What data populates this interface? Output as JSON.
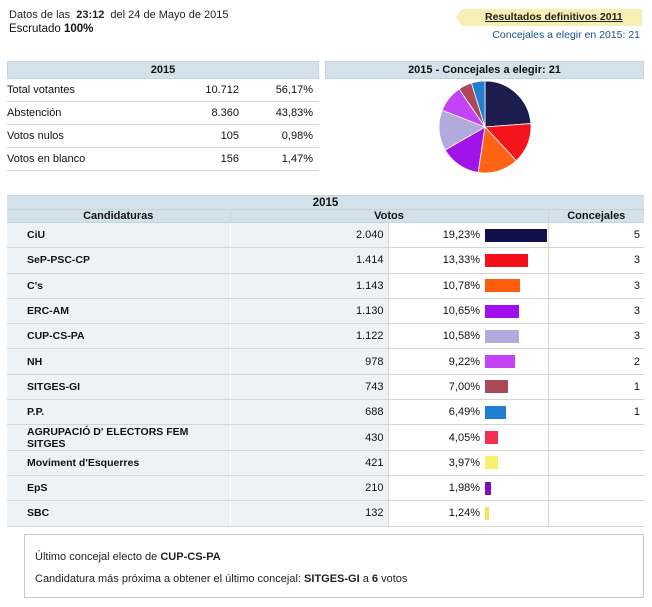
{
  "header": {
    "datos_prefix": "Datos de las",
    "time": "23:12",
    "date_text": "del 24 de Mayo de 2015",
    "escrutado_label": "Escrutado",
    "escrutado_value": "100%",
    "results_link": "Resultados definitivos 2011",
    "to_elect": "Concejales a elegir en 2015: 21"
  },
  "summary": {
    "title": "2015",
    "rows": [
      {
        "label": "Total votantes",
        "number": "10.712",
        "percent": "56,17%"
      },
      {
        "label": "Abstención",
        "number": "8.360",
        "percent": "43,83%"
      },
      {
        "label": "Votos nulos",
        "number": "105",
        "percent": "0,98%"
      },
      {
        "label": "Votos en blanco",
        "number": "156",
        "percent": "1,47%"
      }
    ]
  },
  "pie": {
    "title": "2015 - Concejales a elegir: 21",
    "slices": [
      {
        "party": "CiU",
        "seats": 5,
        "color": "#1c1c4f"
      },
      {
        "party": "SeP-PSC-CP",
        "seats": 3,
        "color": "#f4141d"
      },
      {
        "party": "C's",
        "seats": 3,
        "color": "#ff6415"
      },
      {
        "party": "ERC-AM",
        "seats": 3,
        "color": "#a014ea"
      },
      {
        "party": "CUP-CS-PA",
        "seats": 3,
        "color": "#b2a9dc"
      },
      {
        "party": "NH",
        "seats": 2,
        "color": "#c244f4"
      },
      {
        "party": "SITGES-GI",
        "seats": 1,
        "color": "#ab4a56"
      },
      {
        "party": "P.P.",
        "seats": 1,
        "color": "#1f7fd2"
      }
    ]
  },
  "table": {
    "title": "2015",
    "col_candidaturas": "Candidaturas",
    "col_votos": "Votos",
    "col_concejales": "Concejales",
    "rows": [
      {
        "name": "CiU",
        "votes": "2.040",
        "percent": "19,23%",
        "pct_value": 19.23,
        "color": "#111149",
        "seats": "5"
      },
      {
        "name": "SeP-PSC-CP",
        "votes": "1.414",
        "percent": "13,33%",
        "pct_value": 13.33,
        "color": "#f3101a",
        "seats": "3"
      },
      {
        "name": "C's",
        "votes": "1.143",
        "percent": "10,78%",
        "pct_value": 10.78,
        "color": "#ff5d0e",
        "seats": "3"
      },
      {
        "name": "ERC-AM",
        "votes": "1.130",
        "percent": "10,65%",
        "pct_value": 10.65,
        "color": "#a10ef0",
        "seats": "3"
      },
      {
        "name": "CUP-CS-PA",
        "votes": "1.122",
        "percent": "10,58%",
        "pct_value": 10.58,
        "color": "#b2a9dc",
        "seats": "3"
      },
      {
        "name": "NH",
        "votes": "978",
        "percent": "9,22%",
        "pct_value": 9.22,
        "color": "#c244f4",
        "seats": "2"
      },
      {
        "name": "SITGES-GI",
        "votes": "743",
        "percent": "7,00%",
        "pct_value": 7.0,
        "color": "#ab4a56",
        "seats": "1"
      },
      {
        "name": "P.P.",
        "votes": "688",
        "percent": "6,49%",
        "pct_value": 6.49,
        "color": "#1f7fd2",
        "seats": "1"
      },
      {
        "name": "AGRUPACIÓ D' ELECTORS FEM SITGES",
        "votes": "430",
        "percent": "4,05%",
        "pct_value": 4.05,
        "color": "#f43050",
        "seats": ""
      },
      {
        "name": "Moviment d'Esquerres",
        "votes": "421",
        "percent": "3,97%",
        "pct_value": 3.97,
        "color": "#f7f06a",
        "seats": ""
      },
      {
        "name": "EpS",
        "votes": "210",
        "percent": "1,98%",
        "pct_value": 1.98,
        "color": "#7e0fb6",
        "seats": ""
      },
      {
        "name": "SBC",
        "votes": "132",
        "percent": "1,24%",
        "pct_value": 1.24,
        "color": "#ece85d",
        "seats": ""
      }
    ]
  },
  "footer": {
    "line1_prefix": "Último concejal electo de",
    "line1_party": "CUP-CS-PA",
    "line2_prefix": "Candidatura más próxima a obtener el último concejal:",
    "line2_party": "SITGES-GI",
    "line2_mid": "a",
    "line2_votes": "6",
    "line2_suffix": "votos"
  }
}
